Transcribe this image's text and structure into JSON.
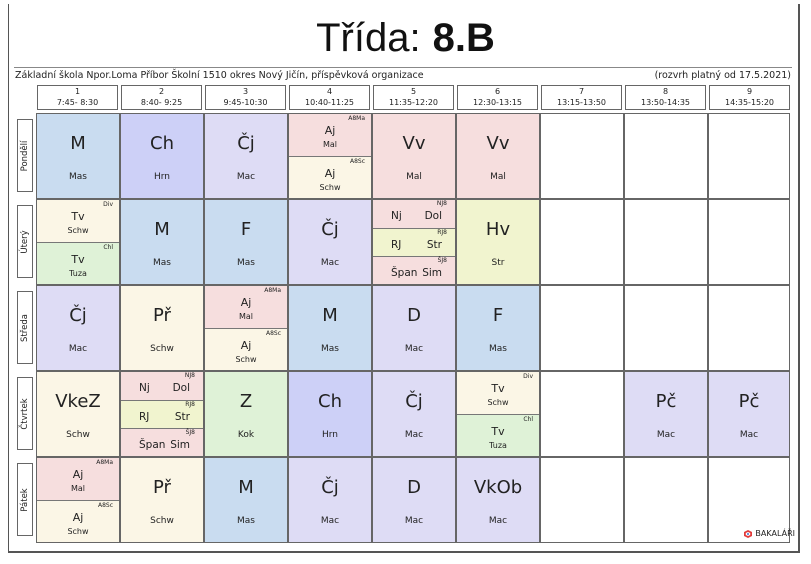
{
  "title_prefix": "Třída:",
  "title_class": "8.B",
  "school": "Základní škola Npor.Loma Příbor Školní 1510 okres Nový Jičín, příspěvková organizace",
  "validity": "(rozvrh platný od 17.5.2021)",
  "logo_text": "BAKALÁŘI",
  "colors": {
    "math": "#c9dcf0",
    "chem": "#cdd0f7",
    "czech": "#dedcf5",
    "lang": "#f6dede",
    "sci": "#fbf6e6",
    "pe": "#dff2d7",
    "music": "#f1f4cf",
    "blank": "#ffffff"
  },
  "hours": [
    {
      "num": "1",
      "time": "7:45- 8:30"
    },
    {
      "num": "2",
      "time": "8:40- 9:25"
    },
    {
      "num": "3",
      "time": "9:45-10:30"
    },
    {
      "num": "4",
      "time": "10:40-11:25"
    },
    {
      "num": "5",
      "time": "11:35-12:20"
    },
    {
      "num": "6",
      "time": "12:30-13:15"
    },
    {
      "num": "7",
      "time": "13:15-13:50"
    },
    {
      "num": "8",
      "time": "13:50-14:35"
    },
    {
      "num": "9",
      "time": "14:35-15:20"
    }
  ],
  "days": [
    {
      "name": "Pondělí",
      "cells": [
        {
          "type": "single",
          "subject": "M",
          "teacher": "Mas",
          "color": "#c9dcf0"
        },
        {
          "type": "single",
          "subject": "Ch",
          "teacher": "Hrn",
          "color": "#cdd0f7"
        },
        {
          "type": "single",
          "subject": "Čj",
          "teacher": "Mac",
          "color": "#dedcf5"
        },
        {
          "type": "split",
          "parts": [
            {
              "group": "A8Ma",
              "subject": "Aj",
              "teacher": "Mal",
              "color": "#f6dede"
            },
            {
              "group": "A8Sc",
              "subject": "Aj",
              "teacher": "Schw",
              "color": "#fbf6e6"
            }
          ]
        },
        {
          "type": "single",
          "subject": "Vv",
          "teacher": "Mal",
          "color": "#f6dede"
        },
        {
          "type": "single",
          "subject": "Vv",
          "teacher": "Mal",
          "color": "#f6dede"
        },
        {
          "type": "empty"
        },
        {
          "type": "empty"
        },
        {
          "type": "empty"
        }
      ]
    },
    {
      "name": "Úterý",
      "cells": [
        {
          "type": "split",
          "parts": [
            {
              "group": "Div",
              "subject": "Tv",
              "teacher": "Schw",
              "color": "#fbf6e6"
            },
            {
              "group": "Chl",
              "subject": "Tv",
              "teacher": "Tuza",
              "color": "#dff2d7"
            }
          ]
        },
        {
          "type": "single",
          "subject": "M",
          "teacher": "Mas",
          "color": "#c9dcf0"
        },
        {
          "type": "single",
          "subject": "F",
          "teacher": "Mas",
          "color": "#c9dcf0"
        },
        {
          "type": "single",
          "subject": "Čj",
          "teacher": "Mac",
          "color": "#dedcf5"
        },
        {
          "type": "triple",
          "parts": [
            {
              "group": "NJ8",
              "subject": "Nj",
              "teacher": "Dol",
              "color": "#f6dede"
            },
            {
              "group": "RJ8",
              "subject": "RJ",
              "teacher": "Str",
              "color": "#f1f4cf"
            },
            {
              "group": "ŠJ8",
              "subject": "Špan",
              "teacher": "Sim",
              "color": "#f6dede"
            }
          ]
        },
        {
          "type": "single",
          "subject": "Hv",
          "teacher": "Str",
          "color": "#f1f4cf"
        },
        {
          "type": "empty"
        },
        {
          "type": "empty"
        },
        {
          "type": "empty"
        }
      ]
    },
    {
      "name": "Středa",
      "cells": [
        {
          "type": "single",
          "subject": "Čj",
          "teacher": "Mac",
          "color": "#dedcf5"
        },
        {
          "type": "single",
          "subject": "Př",
          "teacher": "Schw",
          "color": "#fbf6e6"
        },
        {
          "type": "split",
          "parts": [
            {
              "group": "A8Ma",
              "subject": "Aj",
              "teacher": "Mal",
              "color": "#f6dede"
            },
            {
              "group": "A8Sc",
              "subject": "Aj",
              "teacher": "Schw",
              "color": "#fbf6e6"
            }
          ]
        },
        {
          "type": "single",
          "subject": "M",
          "teacher": "Mas",
          "color": "#c9dcf0"
        },
        {
          "type": "single",
          "subject": "D",
          "teacher": "Mac",
          "color": "#dedcf5"
        },
        {
          "type": "single",
          "subject": "F",
          "teacher": "Mas",
          "color": "#c9dcf0"
        },
        {
          "type": "empty"
        },
        {
          "type": "empty"
        },
        {
          "type": "empty"
        }
      ]
    },
    {
      "name": "Čtvrtek",
      "cells": [
        {
          "type": "single",
          "subject": "VkeZ",
          "teacher": "Schw",
          "color": "#fbf6e6"
        },
        {
          "type": "triple",
          "parts": [
            {
              "group": "NJ8",
              "subject": "Nj",
              "teacher": "Dol",
              "color": "#f6dede"
            },
            {
              "group": "RJ8",
              "subject": "RJ",
              "teacher": "Str",
              "color": "#f1f4cf"
            },
            {
              "group": "ŠJ8",
              "subject": "Špan",
              "teacher": "Sim",
              "color": "#f6dede"
            }
          ]
        },
        {
          "type": "single",
          "subject": "Z",
          "teacher": "Kok",
          "color": "#dff2d7"
        },
        {
          "type": "single",
          "subject": "Ch",
          "teacher": "Hrn",
          "color": "#cdd0f7"
        },
        {
          "type": "single",
          "subject": "Čj",
          "teacher": "Mac",
          "color": "#dedcf5"
        },
        {
          "type": "split",
          "parts": [
            {
              "group": "Div",
              "subject": "Tv",
              "teacher": "Schw",
              "color": "#fbf6e6"
            },
            {
              "group": "Chl",
              "subject": "Tv",
              "teacher": "Tuza",
              "color": "#dff2d7"
            }
          ]
        },
        {
          "type": "empty"
        },
        {
          "type": "single",
          "subject": "Pč",
          "teacher": "Mac",
          "color": "#dedcf5"
        },
        {
          "type": "single",
          "subject": "Pč",
          "teacher": "Mac",
          "color": "#dedcf5"
        }
      ]
    },
    {
      "name": "Pátek",
      "cells": [
        {
          "type": "split",
          "parts": [
            {
              "group": "A8Ma",
              "subject": "Aj",
              "teacher": "Mal",
              "color": "#f6dede"
            },
            {
              "group": "A8Sc",
              "subject": "Aj",
              "teacher": "Schw",
              "color": "#fbf6e6"
            }
          ]
        },
        {
          "type": "single",
          "subject": "Př",
          "teacher": "Schw",
          "color": "#fbf6e6"
        },
        {
          "type": "single",
          "subject": "M",
          "teacher": "Mas",
          "color": "#c9dcf0"
        },
        {
          "type": "single",
          "subject": "Čj",
          "teacher": "Mac",
          "color": "#dedcf5"
        },
        {
          "type": "single",
          "subject": "D",
          "teacher": "Mac",
          "color": "#dedcf5"
        },
        {
          "type": "single",
          "subject": "VkOb",
          "teacher": "Mac",
          "color": "#dedcf5"
        },
        {
          "type": "empty"
        },
        {
          "type": "empty"
        },
        {
          "type": "empty"
        }
      ]
    }
  ]
}
